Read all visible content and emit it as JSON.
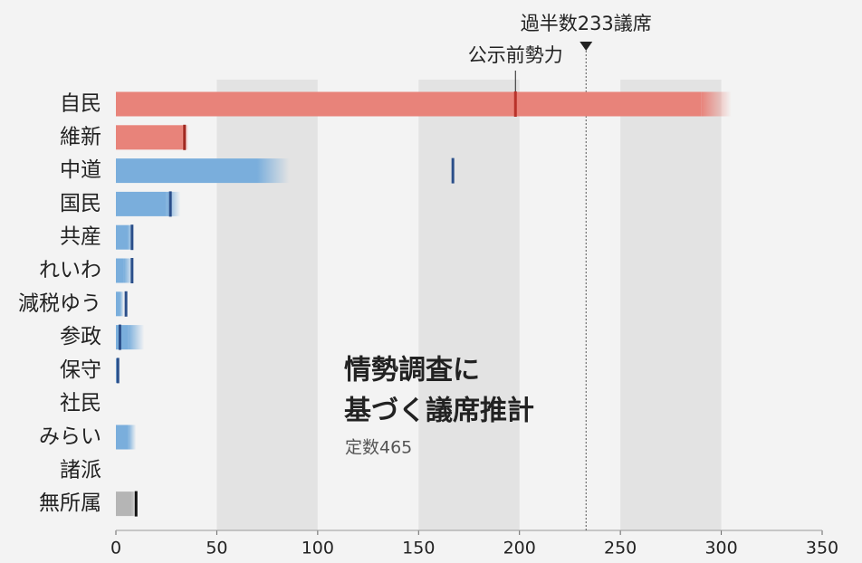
{
  "chart_data": {
    "type": "range_bar",
    "title_lines": [
      "情勢調査に",
      "基づく議席推計"
    ],
    "subtitle": "定数465",
    "categories": [
      "自民",
      "維新",
      "中道",
      "国民",
      "共産",
      "れいわ",
      "減税ゆう",
      "参政",
      "保守",
      "社民",
      "みらい",
      "諸派",
      "無所属"
    ],
    "range_low": [
      290,
      33,
      70,
      25,
      6,
      4,
      2,
      6,
      0,
      null,
      6,
      null,
      8
    ],
    "range_high": [
      305,
      36,
      86,
      32,
      9,
      9,
      4,
      14,
      2,
      null,
      10,
      null,
      10
    ],
    "prior": [
      198,
      34,
      167,
      27,
      8,
      8,
      5,
      2,
      1,
      null,
      null,
      null,
      10
    ],
    "prior_label": "公示前勢力",
    "colors": [
      "#e8837a",
      "#e8837a",
      "#7aaedc",
      "#7aaedc",
      "#7aaedc",
      "#7aaedc",
      "#7aaedc",
      "#7aaedc",
      "#7aaedc",
      "#7aaedc",
      "#7aaedc",
      "#7aaedc",
      "#b5b5b5"
    ],
    "marker_colors": [
      "#b8322a",
      "#a02820",
      "#2b4f8a",
      "#2b4f8a",
      "#2b4f8a",
      "#2b4f8a",
      "#2b4f8a",
      "#2b4f8a",
      "#2b4f8a",
      "#2b4f8a",
      "#2b4f8a",
      "#2b4f8a",
      "#111111"
    ],
    "majority": 233,
    "majority_label": "過半数233議席",
    "xlim": [
      0,
      350
    ],
    "xticks": [
      0,
      50,
      100,
      150,
      200,
      250,
      300,
      350
    ],
    "grid": "bands"
  }
}
